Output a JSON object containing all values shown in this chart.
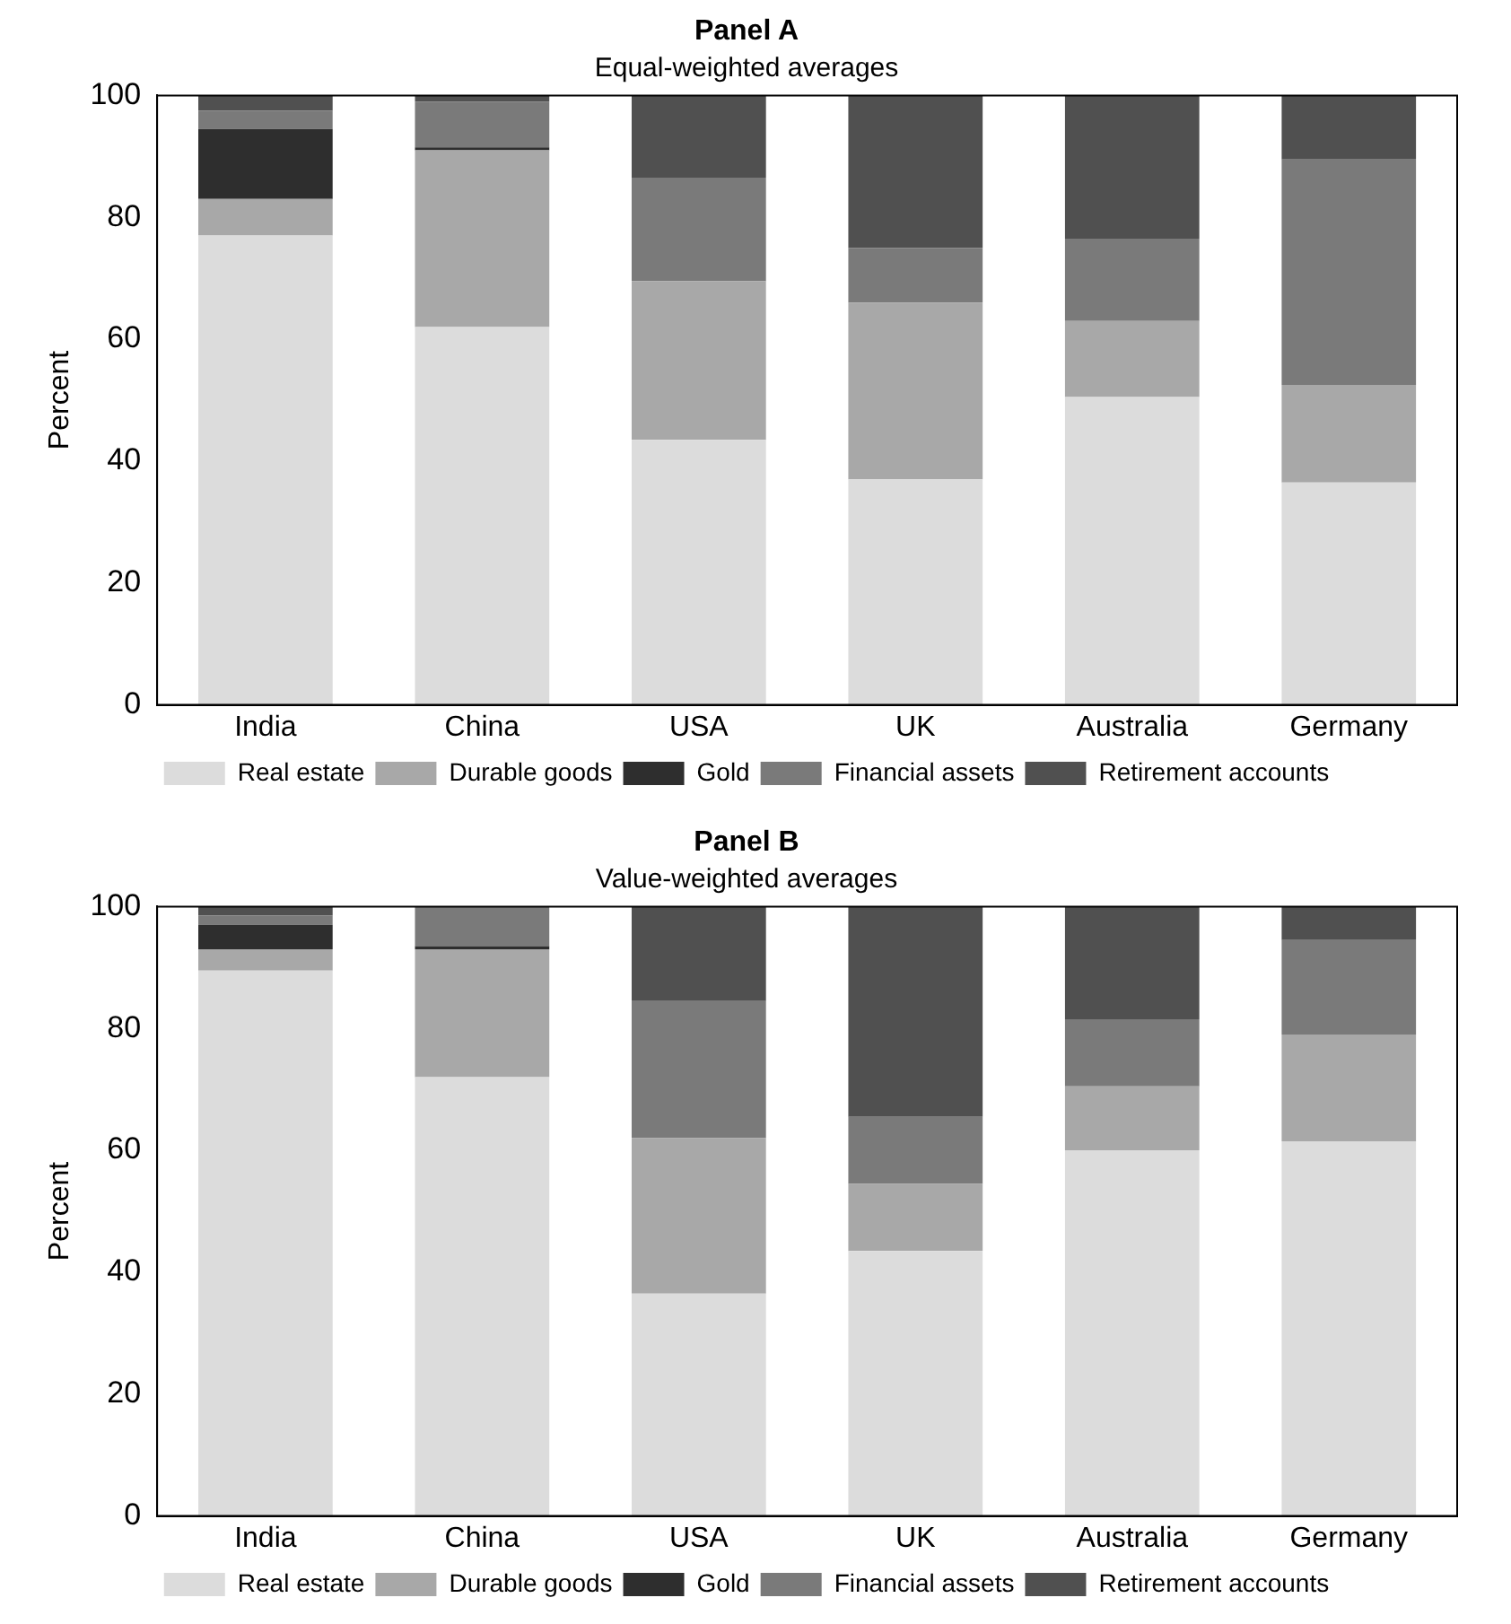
{
  "chart_data": [
    {
      "type": "bar",
      "title": "Panel A",
      "subtitle": "Equal-weighted averages",
      "ylabel": "Percent",
      "categories": [
        "India",
        "China",
        "USA",
        "UK",
        "Australia",
        "Germany"
      ],
      "stacked": true,
      "ylim": [
        0,
        100
      ],
      "yticks": [
        0,
        20,
        40,
        60,
        80,
        100
      ],
      "grid": false,
      "legend": "bottom",
      "series": [
        {
          "name": "Real estate",
          "color": "#dcdcdc",
          "values": [
            77,
            62,
            43.5,
            37,
            50.5,
            36.5
          ]
        },
        {
          "name": "Durable goods",
          "color": "#a8a8a8",
          "values": [
            6,
            29,
            26,
            29,
            12.5,
            16
          ]
        },
        {
          "name": "Gold",
          "color": "#2e2e2e",
          "values": [
            11.5,
            0.5,
            0,
            0,
            0,
            0
          ]
        },
        {
          "name": "Financial assets",
          "color": "#7a7a7a",
          "values": [
            3,
            7.5,
            17,
            9,
            13.5,
            37
          ]
        },
        {
          "name": "Retirement accounts",
          "color": "#505050",
          "values": [
            2.5,
            1,
            13.5,
            25,
            23.5,
            10.5
          ]
        }
      ]
    },
    {
      "type": "bar",
      "title": "Panel B",
      "subtitle": "Value-weighted averages",
      "ylabel": "Percent",
      "categories": [
        "India",
        "China",
        "USA",
        "UK",
        "Australia",
        "Germany"
      ],
      "stacked": true,
      "ylim": [
        0,
        100
      ],
      "yticks": [
        0,
        20,
        40,
        60,
        80,
        100
      ],
      "grid": false,
      "legend": "bottom",
      "series": [
        {
          "name": "Real estate",
          "color": "#dcdcdc",
          "values": [
            89.5,
            72,
            36.5,
            43.5,
            60,
            61.5
          ]
        },
        {
          "name": "Durable goods",
          "color": "#a8a8a8",
          "values": [
            3.5,
            21,
            25.5,
            11,
            10.5,
            17.5
          ]
        },
        {
          "name": "Gold",
          "color": "#2e2e2e",
          "values": [
            4,
            0.5,
            0,
            0,
            0,
            0
          ]
        },
        {
          "name": "Financial assets",
          "color": "#7a7a7a",
          "values": [
            1.5,
            6.5,
            22.5,
            11,
            11,
            15.5
          ]
        },
        {
          "name": "Retirement accounts",
          "color": "#505050",
          "values": [
            1.5,
            0,
            15.5,
            34.5,
            18.5,
            5.5
          ]
        }
      ]
    }
  ]
}
